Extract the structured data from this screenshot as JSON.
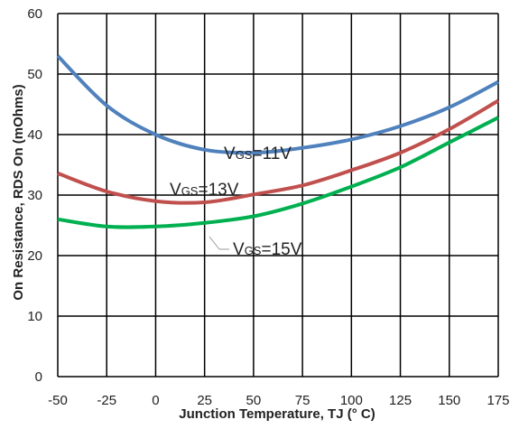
{
  "chart_data": {
    "type": "line",
    "xlabel": "Junction Temperature, TJ (° C)",
    "ylabel": "On Resistance, RDS On (mOhms)",
    "x_ticks": [
      -50,
      -25,
      0,
      25,
      50,
      75,
      100,
      125,
      150,
      175
    ],
    "y_ticks": [
      0,
      10,
      20,
      30,
      40,
      50,
      60
    ],
    "xlim": [
      -50,
      175
    ],
    "ylim": [
      0,
      60
    ],
    "grid": true,
    "x": [
      -50,
      -25,
      0,
      25,
      50,
      75,
      100,
      125,
      150,
      175
    ],
    "series": [
      {
        "name": "VGS=11V",
        "label_main": "V",
        "label_sub": "GS",
        "label_tail": "=11V",
        "color": "#4f81bd",
        "values": [
          53,
          44.8,
          40,
          37.5,
          37,
          37.8,
          39.2,
          41.4,
          44.5,
          48.7
        ]
      },
      {
        "name": "VGS=13V",
        "label_main": "V",
        "label_sub": "GS",
        "label_tail": "=13V",
        "color": "#c0504d",
        "values": [
          33.6,
          30.6,
          29,
          28.8,
          30.1,
          31.6,
          34.1,
          37,
          40.9,
          45.6
        ]
      },
      {
        "name": "VGS=15V",
        "label_main": "V",
        "label_sub": "GS",
        "label_tail": "=15V",
        "color": "#00b050",
        "values": [
          26,
          24.8,
          24.8,
          25.4,
          26.5,
          28.6,
          31.4,
          34.6,
          38.7,
          42.8
        ]
      }
    ]
  }
}
